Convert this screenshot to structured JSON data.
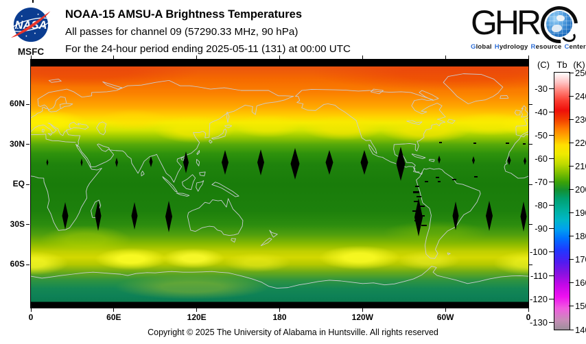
{
  "header": {
    "title": "NOAA-15 AMSU-A Brightness Temperatures",
    "line2": "All passes for channel 09 (57290.33 MHz, 90 hPa)",
    "line3": "For the 24-hour period ending 2025-05-11 (131) at 00:00 UTC"
  },
  "logos": {
    "nasa": {
      "wordmark": "NASA",
      "caption": "MSFC"
    },
    "ghrc": {
      "letters": "GHR",
      "words": [
        {
          "initial": "G",
          "rest": "lobal"
        },
        {
          "initial": "H",
          "rest": "ydrology"
        },
        {
          "initial": "R",
          "rest": "esource"
        },
        {
          "initial": "C",
          "rest": "enter"
        }
      ]
    }
  },
  "palette": {
    "nasa_blue": "#0b3d91",
    "nasa_red": "#e8352b",
    "ghrc_blue": "#2f6fd6",
    "coastline": "#c9cdd6",
    "no_data": "#000000"
  },
  "map": {
    "x_axis": {
      "labels": [
        "0",
        "60E",
        "120E",
        "180",
        "120W",
        "60W",
        "0"
      ]
    },
    "y_axis": {
      "entries": [
        {
          "label": "60N",
          "lat": 60
        },
        {
          "label": "30N",
          "lat": 30
        },
        {
          "label": "EQ",
          "lat": 0
        },
        {
          "label": "30S",
          "lat": -30
        },
        {
          "label": "60S",
          "lat": -60
        }
      ]
    },
    "gaps": {
      "diamonds": [
        [
          24,
          150,
          3,
          10
        ],
        [
          74,
          150,
          3,
          12
        ],
        [
          125,
          150,
          4,
          14
        ],
        [
          175,
          149,
          5,
          16
        ],
        [
          226,
          150,
          8,
          32
        ],
        [
          283,
          150,
          10,
          36
        ],
        [
          335,
          150,
          10,
          38
        ],
        [
          385,
          152,
          13,
          46
        ],
        [
          435,
          150,
          11,
          36
        ],
        [
          486,
          150,
          11,
          36
        ],
        [
          539,
          152,
          13,
          50
        ],
        [
          595,
          146,
          4,
          12
        ],
        [
          645,
          147,
          4,
          12
        ],
        [
          697,
          147,
          5,
          14
        ],
        [
          720,
          148,
          4,
          12
        ],
        [
          50,
          228,
          9,
          40
        ],
        [
          98,
          228,
          9,
          44
        ],
        [
          151,
          228,
          9,
          40
        ],
        [
          201,
          229,
          10,
          46
        ],
        [
          565,
          230,
          12,
          56
        ],
        [
          619,
          228,
          9,
          42
        ],
        [
          668,
          228,
          10,
          44
        ],
        [
          718,
          229,
          9,
          44
        ]
      ],
      "dashes": [
        [
          557,
          192,
          9,
          3
        ],
        [
          562,
          199,
          7,
          2
        ],
        [
          558,
          206,
          6,
          2
        ],
        [
          564,
          213,
          10,
          2
        ],
        [
          556,
          220,
          7,
          2
        ],
        [
          565,
          227,
          9,
          2
        ],
        [
          559,
          234,
          6,
          2
        ],
        [
          569,
          241,
          8,
          2
        ],
        [
          560,
          184,
          6,
          2
        ],
        [
          574,
          177,
          5,
          2
        ],
        [
          590,
          171,
          5,
          2
        ],
        [
          614,
          174,
          6,
          2
        ],
        [
          593,
          177,
          4,
          2
        ],
        [
          646,
          170,
          5,
          2
        ],
        [
          595,
          120,
          4,
          2
        ],
        [
          645,
          121,
          4,
          2
        ],
        [
          692,
          121,
          5,
          2
        ],
        [
          717,
          122,
          4,
          2
        ]
      ]
    }
  },
  "colorbar": {
    "title_left": "(C)",
    "title_mid": "Tb",
    "title_right": "(K)",
    "k_max": 250,
    "k_min": 140,
    "kelvin_ticks": [
      250,
      240,
      230,
      220,
      210,
      200,
      190,
      180,
      170,
      160,
      150,
      140
    ],
    "celsius_ticks": [
      -30,
      -40,
      -50,
      -60,
      -70,
      -80,
      -90,
      -100,
      -110,
      -120,
      -130
    ]
  },
  "footer": {
    "copyright": "Copyright © 2025 The University of Alabama in Huntsville.  All rights reserved"
  },
  "chart_data": {
    "type": "heatmap",
    "title": "NOAA-15 AMSU-A Brightness Temperatures",
    "subtitle": "All passes for channel 09 (57290.33 MHz, 90 hPa)",
    "period": "24-hour period ending 2025-05-11 (131) at 00:00 UTC",
    "projection": "equirectangular global map, longitude 0E to 360E left-to-right, latitude 90N to 90S top-to-bottom",
    "x_tick_labels": [
      "0",
      "60E",
      "120E",
      "180",
      "120W",
      "60W",
      "0"
    ],
    "y_tick_labels": [
      "60N",
      "30N",
      "EQ",
      "30S",
      "60S"
    ],
    "colorbar": {
      "label": "Tb",
      "units_left": "C",
      "units_right": "K",
      "min_K": 140,
      "max_K": 250,
      "kelvin_ticks": [
        250,
        240,
        230,
        220,
        210,
        200,
        190,
        180,
        170,
        160,
        150,
        140
      ],
      "celsius_ticks": [
        -30,
        -40,
        -50,
        -60,
        -70,
        -80,
        -90,
        -100,
        -110,
        -120,
        -130
      ],
      "color_order_top_to_bottom": [
        "white",
        "pink",
        "red",
        "orange",
        "yellow",
        "yellow-green",
        "green",
        "teal",
        "cyan",
        "blue",
        "violet",
        "magenta",
        "gray"
      ]
    },
    "zonal_mean_profile": {
      "lat": [
        88,
        75,
        65,
        55,
        45,
        35,
        25,
        10,
        0,
        -10,
        -25,
        -35,
        -45,
        -52,
        -58,
        -65,
        -72,
        -80,
        -88
      ],
      "tb_K": [
        231,
        228,
        224,
        219,
        214,
        209,
        206,
        203,
        203,
        204,
        206,
        210,
        214,
        216,
        213,
        208,
        201,
        197,
        195
      ]
    },
    "notable_features": [
      "black strips at top and bottom edges = no data poleward of ~88 deg",
      "black diamond-shaped orbit gaps near 23N and 25S repeating every ~25 deg longitude",
      "scattered black gap dashes over northwestern South America",
      "warm orange-red NH polar cap ~228-232 K",
      "wavy yellow band ~218 K near 45-55N",
      "cold dark-green tropics ~203 K",
      "bright yellow band ~215-218 K near 45-60S with maxima near 95E, 140E, 100W and 0E",
      "teal Antarctic interior ~195-197 K"
    ]
  }
}
